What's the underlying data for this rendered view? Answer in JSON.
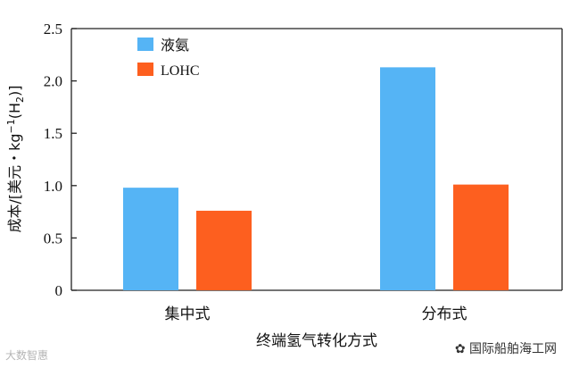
{
  "chart_data": {
    "type": "bar",
    "categories": [
      "集中式",
      "分布式"
    ],
    "series": [
      {
        "name": "液氨",
        "values": [
          0.98,
          2.13
        ],
        "color": "#55b4f5"
      },
      {
        "name": "LOHC",
        "values": [
          0.76,
          1.01
        ],
        "color": "#fd5f1f"
      }
    ],
    "xlabel": "终端氢气转化方式",
    "ylabel_main": "成本/[美元・kg",
    "ylabel_sup": "−1",
    "ylabel_tail": "(H",
    "ylabel_sub": "2",
    "ylabel_end": ")]",
    "ylim": [
      0,
      2.5
    ],
    "yticks": [
      "0",
      "0.5",
      "1.0",
      "1.5",
      "2.0",
      "2.5"
    ],
    "grid": false,
    "legend_position": "top-left"
  },
  "watermark_right": "国际船舶海工网",
  "watermark_left": "大数智惠"
}
